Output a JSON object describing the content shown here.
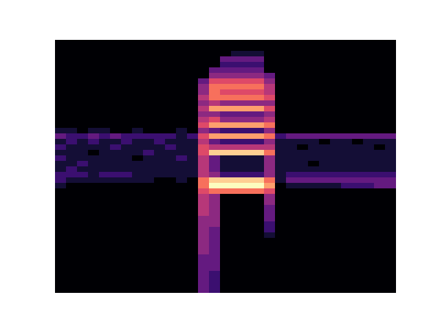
{
  "chart_data": {
    "type": "heatmap",
    "tick_labels": false,
    "zlim": [
      0,
      10
    ],
    "cells": [
      [
        0,
        0,
        0,
        0,
        0,
        0,
        0,
        0,
        0,
        0,
        0,
        0,
        0,
        0,
        0,
        0,
        0,
        0,
        0,
        0,
        0,
        0,
        0,
        0,
        0,
        0,
        0,
        0,
        0,
        0,
        0
      ],
      [
        0,
        0,
        0,
        0,
        0,
        0,
        0,
        0,
        0,
        0,
        0,
        0,
        0,
        0,
        0,
        0,
        0,
        0,
        0,
        0,
        0,
        0,
        0,
        0,
        0,
        0,
        0,
        0,
        0,
        0,
        0
      ],
      [
        0,
        0,
        0,
        0,
        0,
        0,
        0,
        0,
        0,
        0,
        0,
        0,
        0,
        0,
        0,
        0,
        1,
        1,
        1,
        0,
        0,
        0,
        0,
        0,
        0,
        0,
        0,
        0,
        0,
        0,
        0
      ],
      [
        0,
        0,
        0,
        0,
        0,
        0,
        0,
        0,
        0,
        0,
        0,
        0,
        0,
        0,
        0,
        3,
        3,
        3,
        3,
        0,
        0,
        0,
        0,
        0,
        0,
        0,
        0,
        0,
        0,
        0,
        0
      ],
      [
        0,
        0,
        0,
        0,
        0,
        0,
        0,
        0,
        0,
        0,
        0,
        0,
        0,
        0,
        0,
        2,
        2,
        2,
        2,
        0,
        0,
        0,
        0,
        0,
        0,
        0,
        0,
        0,
        0,
        0,
        0
      ],
      [
        0,
        0,
        0,
        0,
        0,
        0,
        0,
        0,
        0,
        0,
        0,
        0,
        0,
        0,
        3,
        3,
        3,
        3,
        3,
        0,
        0,
        0,
        0,
        0,
        0,
        0,
        0,
        0,
        0,
        0,
        0
      ],
      [
        0,
        0,
        0,
        0,
        0,
        0,
        0,
        0,
        0,
        0,
        0,
        0,
        0,
        0,
        4,
        4,
        4,
        4,
        4,
        3,
        0,
        0,
        0,
        0,
        0,
        0,
        0,
        0,
        0,
        0,
        0
      ],
      [
        0,
        0,
        0,
        0,
        0,
        0,
        0,
        0,
        0,
        0,
        0,
        0,
        0,
        3,
        6,
        6,
        6,
        6,
        6,
        4,
        0,
        0,
        0,
        0,
        0,
        0,
        0,
        0,
        0,
        0,
        0
      ],
      [
        0,
        0,
        0,
        0,
        0,
        0,
        0,
        0,
        0,
        0,
        0,
        0,
        0,
        4,
        7,
        7,
        7,
        7,
        7,
        5,
        0,
        0,
        0,
        0,
        0,
        0,
        0,
        0,
        0,
        0,
        0
      ],
      [
        0,
        0,
        0,
        0,
        0,
        0,
        0,
        0,
        0,
        0,
        0,
        0,
        0,
        4,
        7,
        6,
        6,
        6,
        6,
        5,
        0,
        0,
        0,
        0,
        0,
        0,
        0,
        0,
        0,
        0,
        0
      ],
      [
        0,
        0,
        0,
        0,
        0,
        0,
        0,
        0,
        0,
        0,
        0,
        0,
        0,
        5,
        7,
        7,
        7,
        7,
        7,
        6,
        0,
        0,
        0,
        0,
        0,
        0,
        0,
        0,
        0,
        0,
        0
      ],
      [
        0,
        0,
        0,
        0,
        0,
        0,
        0,
        0,
        0,
        0,
        0,
        0,
        0,
        4,
        5,
        4,
        4,
        4,
        4,
        4,
        0,
        0,
        0,
        0,
        0,
        0,
        0,
        0,
        0,
        0,
        0
      ],
      [
        0,
        0,
        0,
        0,
        0,
        0,
        0,
        0,
        0,
        0,
        0,
        0,
        0,
        5,
        8,
        8,
        8,
        8,
        8,
        6,
        0,
        0,
        0,
        0,
        0,
        0,
        0,
        0,
        0,
        0,
        0
      ],
      [
        0,
        0,
        0,
        0,
        0,
        0,
        0,
        0,
        0,
        0,
        0,
        0,
        0,
        4,
        4,
        3,
        3,
        3,
        3,
        4,
        0,
        0,
        0,
        0,
        0,
        0,
        0,
        0,
        0,
        0,
        0
      ],
      [
        0,
        0,
        0,
        0,
        0,
        0,
        0,
        0,
        0,
        0,
        0,
        0,
        0,
        5,
        6,
        4,
        4,
        4,
        4,
        5,
        0,
        0,
        0,
        0,
        0,
        0,
        0,
        0,
        0,
        0,
        0
      ],
      [
        0,
        0,
        0,
        0,
        0,
        0,
        0,
        0,
        0,
        0,
        0,
        0,
        0,
        6,
        8,
        8,
        8,
        8,
        8,
        7,
        0,
        0,
        0,
        0,
        0,
        0,
        0,
        0,
        0,
        0,
        0
      ],
      [
        1,
        1,
        0,
        1,
        1,
        0,
        0,
        1,
        0,
        0,
        0,
        1,
        0,
        4,
        3,
        2,
        2,
        2,
        2,
        4,
        0,
        0,
        0,
        0,
        0,
        0,
        0,
        0,
        0,
        0,
        0
      ],
      [
        3,
        2,
        2,
        3,
        2,
        3,
        2,
        2,
        2,
        2,
        2,
        1,
        2,
        6,
        8,
        8,
        8,
        8,
        8,
        7,
        2,
        3,
        3,
        3,
        3,
        3,
        3,
        3,
        3,
        3,
        3
      ],
      [
        1,
        2,
        1,
        2,
        1,
        1,
        2,
        1,
        1,
        2,
        1,
        1,
        1,
        5,
        3,
        2,
        2,
        2,
        2,
        4,
        1,
        1,
        1,
        1,
        0,
        1,
        1,
        0,
        1,
        1,
        1
      ],
      [
        2,
        1,
        1,
        1,
        1,
        2,
        1,
        1,
        1,
        1,
        2,
        1,
        1,
        6,
        5,
        5,
        5,
        5,
        5,
        5,
        1,
        1,
        0,
        1,
        1,
        1,
        1,
        1,
        1,
        0,
        1
      ],
      [
        1,
        1,
        1,
        0,
        1,
        1,
        1,
        1,
        2,
        1,
        1,
        1,
        1,
        6,
        9,
        9,
        9,
        9,
        9,
        7,
        1,
        1,
        1,
        1,
        1,
        1,
        1,
        1,
        1,
        1,
        1
      ],
      [
        2,
        1,
        1,
        1,
        1,
        1,
        1,
        0,
        1,
        1,
        1,
        2,
        1,
        5,
        3,
        1,
        1,
        1,
        1,
        4,
        1,
        1,
        1,
        1,
        1,
        1,
        1,
        1,
        1,
        1,
        1
      ],
      [
        1,
        1,
        2,
        1,
        1,
        1,
        1,
        1,
        1,
        1,
        1,
        1,
        1,
        5,
        3,
        1,
        1,
        1,
        1,
        4,
        1,
        1,
        1,
        0,
        1,
        1,
        1,
        1,
        1,
        1,
        1
      ],
      [
        1,
        2,
        1,
        1,
        1,
        1,
        1,
        1,
        1,
        1,
        1,
        1,
        1,
        5,
        3,
        1,
        1,
        1,
        1,
        4,
        1,
        1,
        1,
        1,
        1,
        1,
        1,
        1,
        1,
        1,
        1
      ],
      [
        2,
        2,
        2,
        1,
        2,
        2,
        2,
        1,
        1,
        1,
        1,
        1,
        1,
        5,
        4,
        2,
        2,
        2,
        2,
        4,
        1,
        2,
        2,
        2,
        2,
        2,
        2,
        2,
        2,
        2,
        2
      ],
      [
        2,
        1,
        1,
        1,
        1,
        1,
        1,
        1,
        1,
        0,
        0,
        1,
        0,
        7,
        9,
        9,
        9,
        9,
        9,
        7,
        1,
        3,
        3,
        3,
        3,
        3,
        3,
        3,
        3,
        3,
        3
      ],
      [
        1,
        0,
        0,
        0,
        0,
        0,
        0,
        0,
        0,
        0,
        0,
        0,
        0,
        7,
        10,
        10,
        10,
        10,
        10,
        8,
        0,
        1,
        1,
        1,
        1,
        1,
        2,
        2,
        2,
        3,
        3
      ],
      [
        0,
        0,
        0,
        0,
        0,
        0,
        0,
        0,
        0,
        0,
        0,
        0,
        0,
        6,
        7,
        7,
        7,
        7,
        7,
        6,
        0,
        0,
        0,
        0,
        0,
        0,
        0,
        0,
        0,
        0,
        0
      ],
      [
        0,
        0,
        0,
        0,
        0,
        0,
        0,
        0,
        0,
        0,
        0,
        0,
        0,
        5,
        4,
        0,
        0,
        0,
        0,
        4,
        0,
        0,
        0,
        0,
        0,
        0,
        0,
        0,
        0,
        0,
        0
      ],
      [
        0,
        0,
        0,
        0,
        0,
        0,
        0,
        0,
        0,
        0,
        0,
        0,
        0,
        5,
        4,
        0,
        0,
        0,
        0,
        4,
        0,
        0,
        0,
        0,
        0,
        0,
        0,
        0,
        0,
        0,
        0
      ],
      [
        0,
        0,
        0,
        0,
        0,
        0,
        0,
        0,
        0,
        0,
        0,
        0,
        0,
        5,
        4,
        0,
        0,
        0,
        0,
        3,
        0,
        0,
        0,
        0,
        0,
        0,
        0,
        0,
        0,
        0,
        0
      ],
      [
        0,
        0,
        0,
        0,
        0,
        0,
        0,
        0,
        0,
        0,
        0,
        0,
        0,
        5,
        4,
        0,
        0,
        0,
        0,
        3,
        0,
        0,
        0,
        0,
        0,
        0,
        0,
        0,
        0,
        0,
        0
      ],
      [
        0,
        0,
        0,
        0,
        0,
        0,
        0,
        0,
        0,
        0,
        0,
        0,
        0,
        4,
        4,
        0,
        0,
        0,
        0,
        3,
        0,
        0,
        0,
        0,
        0,
        0,
        0,
        0,
        0,
        0,
        0
      ],
      [
        0,
        0,
        0,
        0,
        0,
        0,
        0,
        0,
        0,
        0,
        0,
        0,
        0,
        4,
        4,
        0,
        0,
        0,
        0,
        2,
        0,
        0,
        0,
        0,
        0,
        0,
        0,
        0,
        0,
        0,
        0
      ],
      [
        0,
        0,
        0,
        0,
        0,
        0,
        0,
        0,
        0,
        0,
        0,
        0,
        0,
        4,
        3,
        0,
        0,
        0,
        0,
        2,
        0,
        0,
        0,
        0,
        0,
        0,
        0,
        0,
        0,
        0,
        0
      ],
      [
        0,
        0,
        0,
        0,
        0,
        0,
        0,
        0,
        0,
        0,
        0,
        0,
        0,
        4,
        3,
        0,
        0,
        0,
        0,
        1,
        0,
        0,
        0,
        0,
        0,
        0,
        0,
        0,
        0,
        0,
        0
      ],
      [
        0,
        0,
        0,
        0,
        0,
        0,
        0,
        0,
        0,
        0,
        0,
        0,
        0,
        4,
        3,
        0,
        0,
        0,
        0,
        0,
        0,
        0,
        0,
        0,
        0,
        0,
        0,
        0,
        0,
        0,
        0
      ],
      [
        0,
        0,
        0,
        0,
        0,
        0,
        0,
        0,
        0,
        0,
        0,
        0,
        0,
        4,
        3,
        0,
        0,
        0,
        0,
        0,
        0,
        0,
        0,
        0,
        0,
        0,
        0,
        0,
        0,
        0,
        0
      ],
      [
        0,
        0,
        0,
        0,
        0,
        0,
        0,
        0,
        0,
        0,
        0,
        0,
        0,
        4,
        3,
        0,
        0,
        0,
        0,
        0,
        0,
        0,
        0,
        0,
        0,
        0,
        0,
        0,
        0,
        0,
        0
      ],
      [
        0,
        0,
        0,
        0,
        0,
        0,
        0,
        0,
        0,
        0,
        0,
        0,
        0,
        3,
        3,
        0,
        0,
        0,
        0,
        0,
        0,
        0,
        0,
        0,
        0,
        0,
        0,
        0,
        0,
        0,
        0
      ],
      [
        0,
        0,
        0,
        0,
        0,
        0,
        0,
        0,
        0,
        0,
        0,
        0,
        0,
        3,
        3,
        0,
        0,
        0,
        0,
        0,
        0,
        0,
        0,
        0,
        0,
        0,
        0,
        0,
        0,
        0,
        0
      ],
      [
        0,
        0,
        0,
        0,
        0,
        0,
        0,
        0,
        0,
        0,
        0,
        0,
        0,
        3,
        3,
        0,
        0,
        0,
        0,
        0,
        0,
        0,
        0,
        0,
        0,
        0,
        0,
        0,
        0,
        0,
        0
      ],
      [
        0,
        0,
        0,
        0,
        0,
        0,
        0,
        0,
        0,
        0,
        0,
        0,
        0,
        3,
        2,
        0,
        0,
        0,
        0,
        0,
        0,
        0,
        0,
        0,
        0,
        0,
        0,
        0,
        0,
        0,
        0
      ],
      [
        0,
        0,
        0,
        0,
        0,
        0,
        0,
        0,
        0,
        0,
        0,
        0,
        0,
        3,
        2,
        0,
        0,
        0,
        0,
        0,
        0,
        0,
        0,
        0,
        0,
        0,
        0,
        0,
        0,
        0,
        0
      ],
      [
        0,
        0,
        0,
        0,
        0,
        0,
        0,
        0,
        0,
        0,
        0,
        0,
        0,
        3,
        2,
        0,
        0,
        0,
        0,
        0,
        0,
        0,
        0,
        0,
        0,
        0,
        0,
        0,
        0,
        0,
        0
      ],
      [
        0,
        0,
        0,
        0,
        0,
        0,
        0,
        0,
        0,
        0,
        0,
        0,
        0,
        3,
        2,
        0,
        0,
        0,
        0,
        0,
        0,
        0,
        0,
        0,
        0,
        0,
        0,
        0,
        0,
        0,
        0
      ]
    ]
  }
}
